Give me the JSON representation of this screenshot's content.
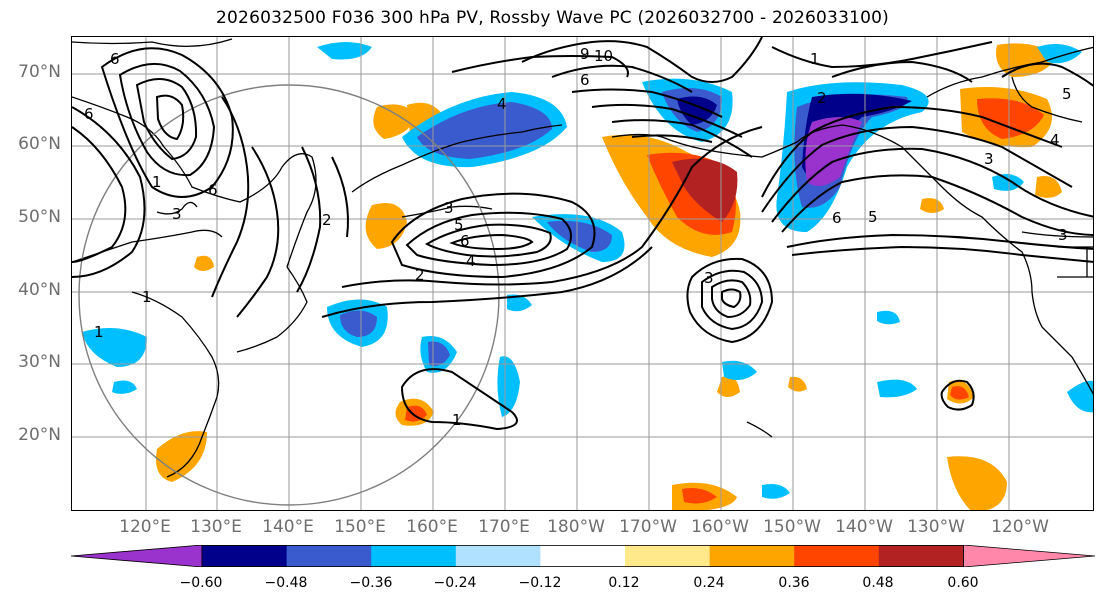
{
  "title": "2026032500 F036 300 hPa PV, Rossby Wave PC (2026032700 - 2026033100)",
  "map": {
    "lat_labels": [
      "70°N",
      "60°N",
      "50°N",
      "40°N",
      "30°N",
      "20°N"
    ],
    "lon_labels": [
      "120°E",
      "130°E",
      "140°E",
      "150°E",
      "160°E",
      "170°E",
      "180°W",
      "170°W",
      "160°W",
      "150°W",
      "140°W",
      "130°W",
      "120°W"
    ],
    "contour_labels": [
      "6",
      "9",
      "10",
      "1",
      "6",
      "4",
      "2",
      "3",
      "5",
      "6",
      "4",
      "3",
      "2",
      "6",
      "5",
      "4",
      "3",
      "1",
      "3",
      "2",
      "6",
      "5",
      "6",
      "3",
      "1",
      "1",
      "1"
    ],
    "colors": {
      "grid": "#9a9a9a",
      "coast": "#000000",
      "contour": "#000000",
      "circle": "#7f7f7f"
    }
  },
  "colorbar": {
    "levels": [
      "−0.60",
      "−0.48",
      "−0.36",
      "−0.24",
      "−0.12",
      "0.12",
      "0.24",
      "0.36",
      "0.48",
      "0.60"
    ],
    "colors": [
      "#9a32cd",
      "#00008b",
      "#3a5bcd",
      "#00bfff",
      "#b0e2ff",
      "#ffffff",
      "#ffe98a",
      "#ffa500",
      "#ff4500",
      "#b22222",
      "#ff88aa"
    ]
  }
}
